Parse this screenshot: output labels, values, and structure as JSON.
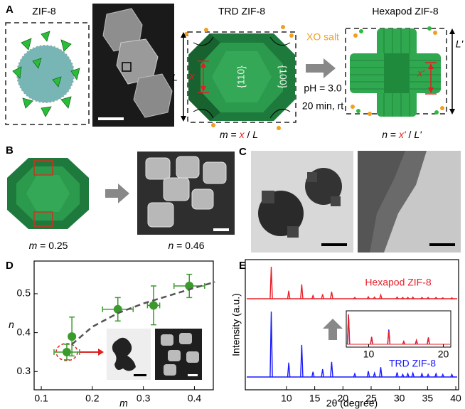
{
  "panel_labels": [
    "A",
    "B",
    "C",
    "D",
    "E"
  ],
  "panel_a": {
    "zif8_title": "ZIF-8",
    "trd_title": "TRD ZIF-8",
    "hexapod_title": "Hexapod ZIF-8",
    "L": "L",
    "x": "x",
    "facet_110": "{110}",
    "facet_100": "{100}",
    "reagent": "XO salt",
    "condition_ph": "pH = 3.0",
    "condition_time": "20 min, rt",
    "m_formula": [
      "m",
      " = ",
      "x",
      " / ",
      "L"
    ],
    "L_prime": "L'",
    "x_prime": "x'",
    "n_formula": [
      "n",
      " = ",
      "x'",
      " / ",
      "L'"
    ]
  },
  "panel_b": {
    "m_label": [
      "m",
      " = 0.25"
    ],
    "n_label": [
      "n",
      " = 0.46"
    ]
  },
  "chart_data": [
    {
      "type": "scatter",
      "xlabel": "m",
      "ylabel": "n",
      "xlim": [
        0.086,
        0.437
      ],
      "ylim": [
        0.253,
        0.584
      ],
      "xticks": [
        0.1,
        0.2,
        0.3,
        0.4
      ],
      "yticks": [
        0.3,
        0.4,
        0.5
      ],
      "series": [
        {
          "type": "scatter",
          "color": "#3c9a2c",
          "x": [
            0.15,
            0.16,
            0.25,
            0.32,
            0.39
          ],
          "values": [
            0.35,
            0.39,
            0.46,
            0.47,
            0.52
          ],
          "x_errors": [
            0.025,
            0.006,
            0.03,
            0.012,
            0.03
          ],
          "y_errors": [
            0.02,
            0.05,
            0.03,
            0.05,
            0.03
          ]
        },
        {
          "type": "line",
          "color": "#555555",
          "linestyle": "dashed",
          "x": [
            0.16,
            0.2,
            0.25,
            0.3,
            0.35,
            0.4,
            0.44
          ],
          "values": [
            0.37,
            0.415,
            0.45,
            0.475,
            0.495,
            0.515,
            0.53
          ]
        }
      ]
    },
    {
      "type": "line",
      "xlabel": "2θ (degree)",
      "ylabel": "Intensity (a.u.)",
      "xlim": [
        2.7,
        40.5
      ],
      "xticks": [
        10,
        15,
        20,
        25,
        30,
        35,
        40
      ],
      "series": [
        {
          "name": "Hexapod ZIF-8",
          "color": "#e8202a",
          "x": [
            7.3,
            10.4,
            12.7,
            14.7,
            16.4,
            18.0,
            22.1,
            24.5,
            25.6,
            26.7,
            29.6,
            30.6,
            31.5,
            32.4,
            34.0,
            35.1,
            36.5,
            37.7,
            39.3
          ],
          "values": [
            100,
            25,
            45,
            10,
            14,
            22,
            4,
            6,
            5,
            12,
            5,
            4,
            4,
            5,
            4,
            4,
            4,
            3,
            3
          ]
        },
        {
          "name": "TRD ZIF-8",
          "color": "#1a1aff",
          "x": [
            7.3,
            10.4,
            12.7,
            14.7,
            16.4,
            18.0,
            22.1,
            24.5,
            25.6,
            26.7,
            29.6,
            30.6,
            31.5,
            32.4,
            34.0,
            35.1,
            36.5,
            37.7,
            39.3
          ],
          "values": [
            100,
            22,
            49,
            8,
            12,
            23,
            5,
            9,
            6,
            15,
            7,
            4,
            5,
            6,
            5,
            4,
            5,
            4,
            4
          ]
        }
      ],
      "inset": {
        "xlim": [
          7,
          21
        ],
        "xticks": [
          10,
          20
        ]
      }
    }
  ]
}
